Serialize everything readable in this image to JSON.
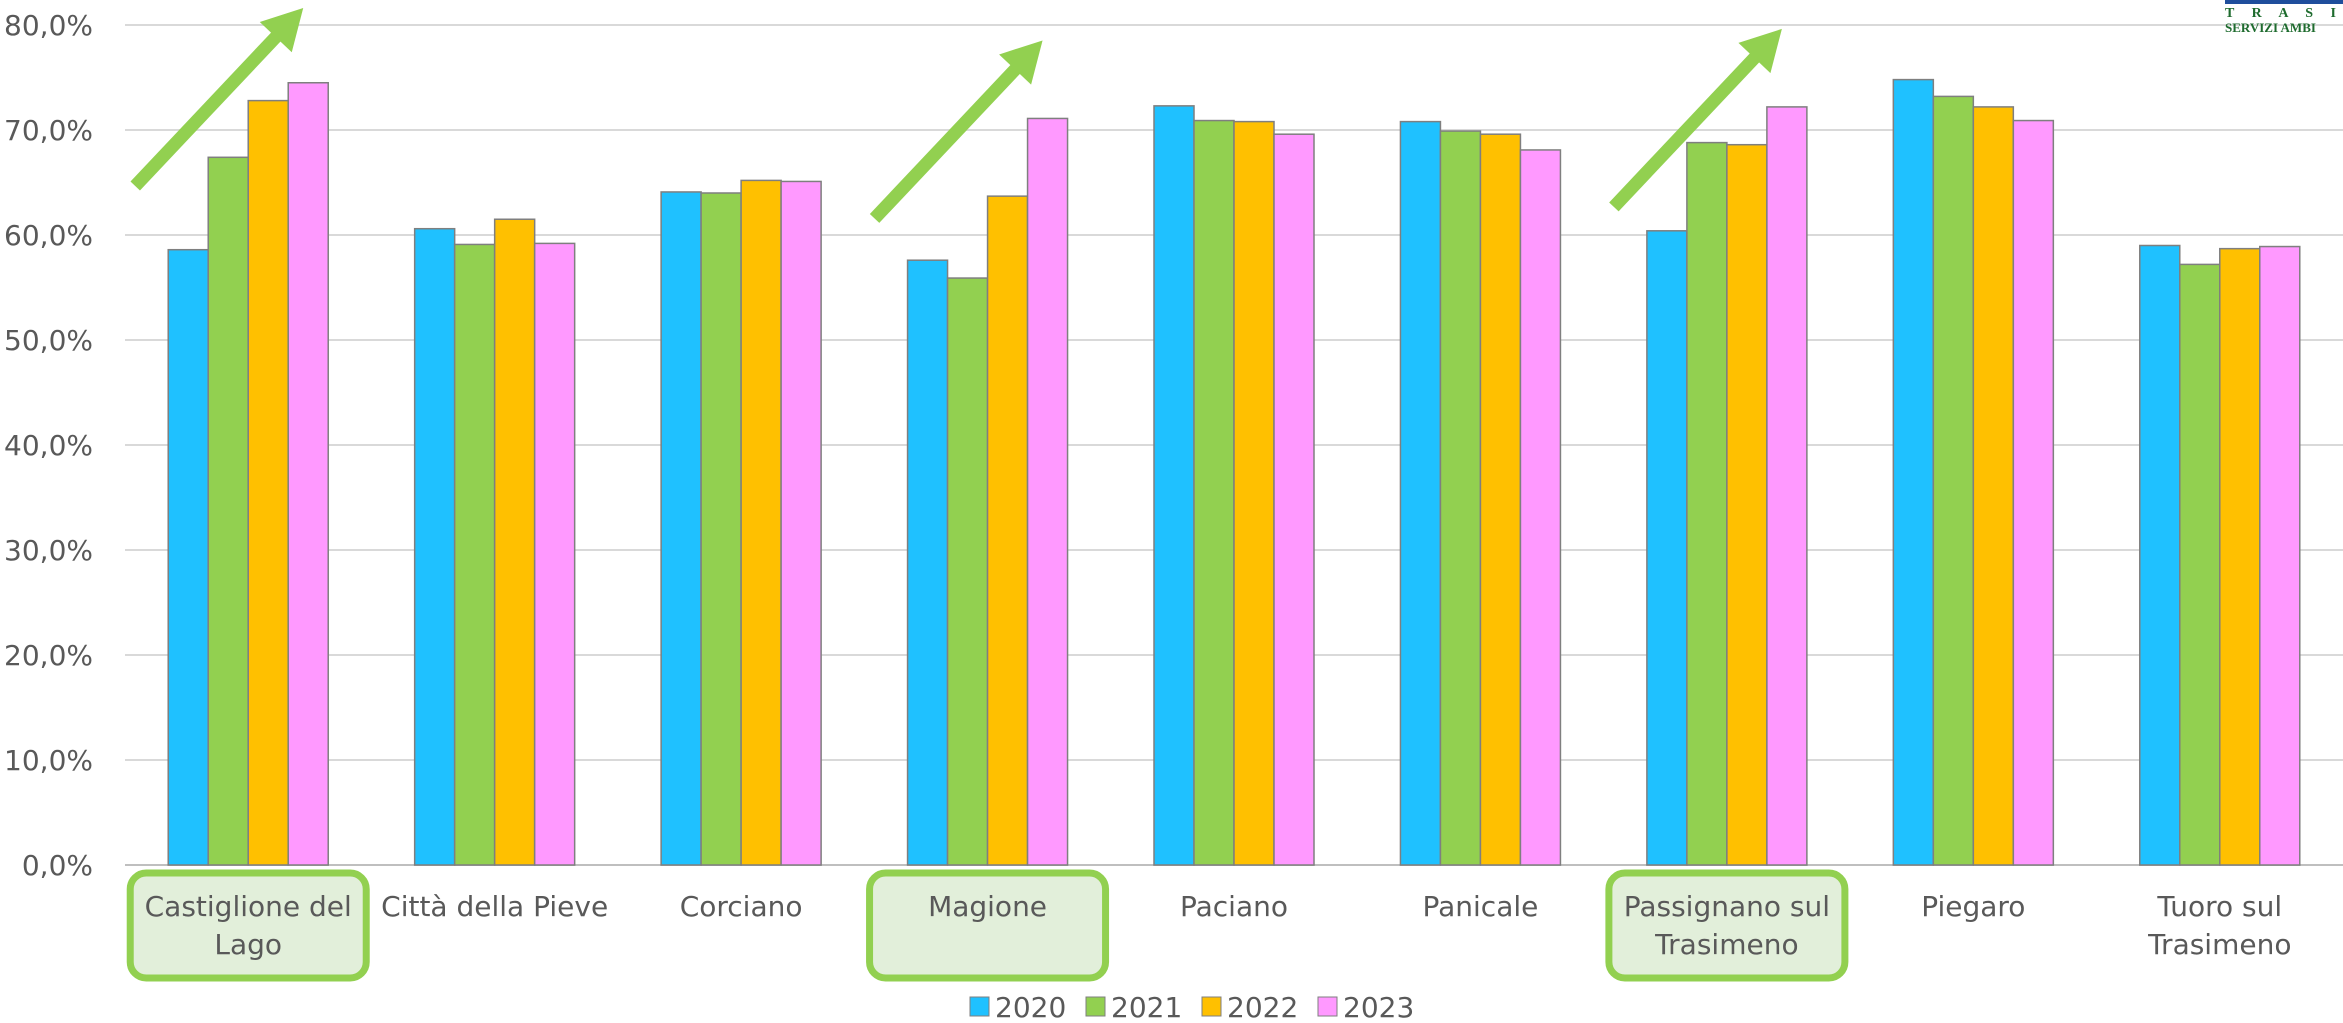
{
  "logo": {
    "line1": "T R A S I M",
    "line2": "SERVIZI AMBI"
  },
  "chart_data": {
    "type": "bar",
    "title": "",
    "xlabel": "",
    "ylabel": "",
    "ylim": [
      0,
      80
    ],
    "yticks": [
      "0,0%",
      "10,0%",
      "20,0%",
      "30,0%",
      "40,0%",
      "50,0%",
      "60,0%",
      "70,0%",
      "80,0%"
    ],
    "grid": true,
    "legend_position": "bottom",
    "categories": [
      [
        "Castiglione del",
        "Lago"
      ],
      [
        "Città della Pieve"
      ],
      [
        "Corciano"
      ],
      [
        "Magione"
      ],
      [
        "Paciano"
      ],
      [
        "Panicale"
      ],
      [
        "Passignano sul",
        "Trasimeno"
      ],
      [
        "Piegaro"
      ],
      [
        "Tuoro sul",
        "Trasimeno"
      ]
    ],
    "highlighted_categories": [
      0,
      3,
      6
    ],
    "trend_arrows": [
      0,
      3,
      6
    ],
    "series": [
      {
        "name": "2020",
        "color": "#1fc1ff",
        "values": [
          58.6,
          60.6,
          64.1,
          57.6,
          72.3,
          70.8,
          60.4,
          74.8,
          59.0
        ]
      },
      {
        "name": "2021",
        "color": "#92d050",
        "values": [
          67.4,
          59.1,
          64.0,
          55.9,
          70.9,
          69.9,
          68.8,
          73.2,
          57.2
        ]
      },
      {
        "name": "2022",
        "color": "#ffc000",
        "values": [
          72.8,
          61.5,
          65.2,
          63.7,
          70.8,
          69.6,
          68.6,
          72.2,
          58.7
        ]
      },
      {
        "name": "2023",
        "color": "#ff99ff",
        "values": [
          74.5,
          59.2,
          65.1,
          71.1,
          69.6,
          68.1,
          72.2,
          70.9,
          58.9
        ]
      }
    ],
    "highlight_color": "#92d050",
    "highlight_fill": "#e2efda",
    "arrow_color": "#92d050"
  }
}
